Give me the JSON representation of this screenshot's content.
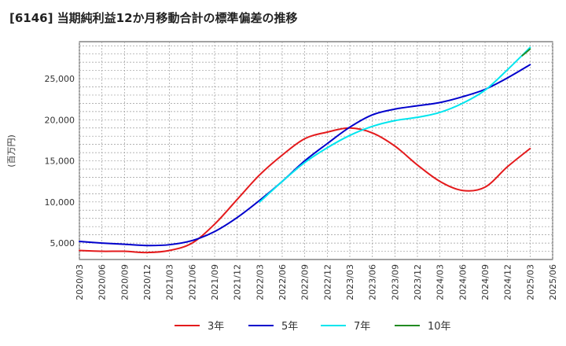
{
  "title": "[6146]  当期純利益12か月移動合計の標準偏差の推移",
  "chart_data": {
    "type": "line",
    "title": "[6146]  当期純利益12か月移動合計の標準偏差の推移",
    "xlabel": "",
    "ylabel": "(百万円)",
    "ylim": [
      3000,
      29500
    ],
    "yticks": [
      5000,
      10000,
      15000,
      20000,
      25000
    ],
    "ytick_labels": [
      "5,000",
      "10,000",
      "15,000",
      "20,000",
      "25,000"
    ],
    "x": [
      "2020/03",
      "2020/06",
      "2020/09",
      "2020/12",
      "2021/03",
      "2021/06",
      "2021/09",
      "2021/12",
      "2022/03",
      "2022/06",
      "2022/09",
      "2022/12",
      "2023/03",
      "2023/06",
      "2023/09",
      "2023/12",
      "2024/03",
      "2024/06",
      "2024/09",
      "2024/12",
      "2025/03",
      "2025/06"
    ],
    "grid": true,
    "legend_position": "bottom",
    "series": [
      {
        "name": "3年",
        "color": "#e41a1c",
        "values": [
          4100,
          4000,
          4000,
          3850,
          4100,
          5000,
          7300,
          10300,
          13300,
          15700,
          17700,
          18500,
          19000,
          18400,
          16800,
          14500,
          12500,
          11400,
          11800,
          14300,
          16500,
          null
        ]
      },
      {
        "name": "5年",
        "color": "#0000cc",
        "values": [
          5200,
          5000,
          4850,
          4700,
          4800,
          5300,
          6400,
          8100,
          10200,
          12500,
          15000,
          17100,
          19100,
          20600,
          21300,
          21700,
          22100,
          22800,
          23700,
          25100,
          26700,
          null
        ]
      },
      {
        "name": "7年",
        "color": "#00e5ee",
        "values": [
          null,
          null,
          null,
          null,
          null,
          null,
          null,
          null,
          10000,
          12500,
          14800,
          16600,
          18100,
          19200,
          19900,
          20300,
          20900,
          22000,
          23600,
          26100,
          28800,
          null
        ]
      },
      {
        "name": "10年",
        "color": "#228b22",
        "values": [
          null,
          null,
          null,
          null,
          null,
          null,
          null,
          null,
          null,
          null,
          null,
          null,
          null,
          null,
          null,
          null,
          null,
          null,
          null,
          null,
          28600,
          null
        ]
      }
    ],
    "series_start": {
      "10年": 27800
    }
  }
}
